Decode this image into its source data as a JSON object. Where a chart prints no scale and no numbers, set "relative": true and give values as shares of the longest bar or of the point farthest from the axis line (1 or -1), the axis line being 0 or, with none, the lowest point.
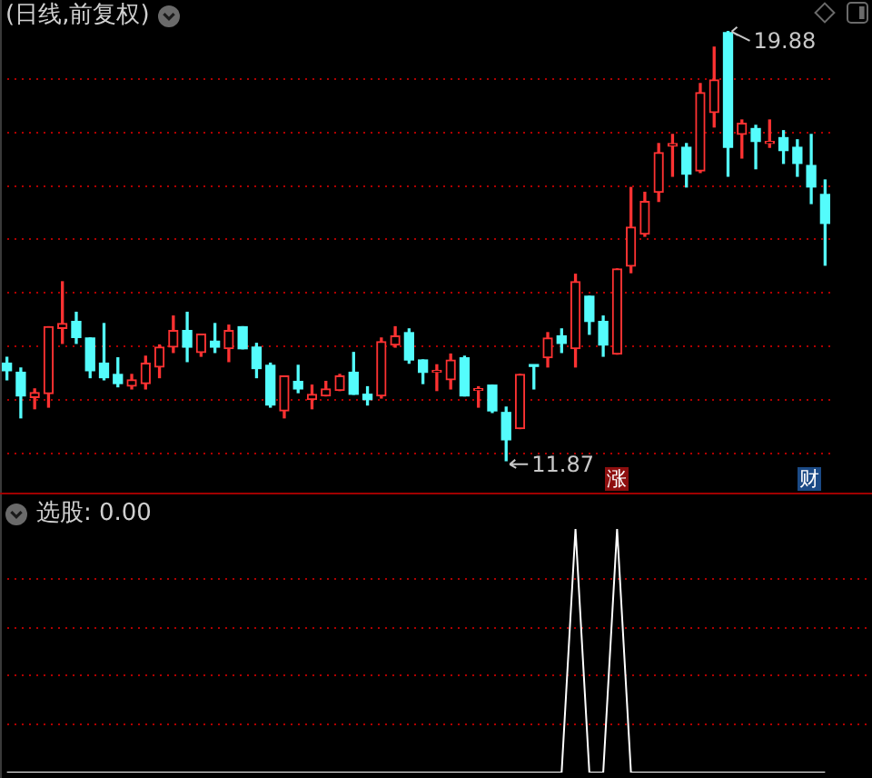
{
  "chart_data": [
    {
      "type": "candlestick",
      "title": "(日线,前复权)",
      "categories": [
        null,
        null,
        null,
        null,
        null,
        null,
        null,
        null,
        null,
        null,
        null,
        null,
        null,
        null,
        null,
        null,
        null,
        null,
        null,
        null,
        null,
        null,
        null,
        null,
        null,
        null,
        null,
        null,
        null,
        null,
        null,
        null,
        null,
        null,
        null,
        null,
        null,
        null,
        null,
        null,
        null,
        null,
        null,
        null,
        null,
        null,
        null,
        null,
        null,
        null,
        null,
        null,
        null,
        null,
        null,
        null,
        null,
        null,
        null,
        null
      ],
      "ohlc": [
        [
          13.69,
          13.8,
          13.38,
          13.55
        ],
        [
          13.52,
          13.6,
          12.67,
          13.08
        ],
        [
          13.05,
          13.21,
          12.84,
          13.14
        ],
        [
          13.12,
          14.37,
          12.87,
          14.37
        ],
        [
          14.34,
          15.21,
          14.06,
          14.43
        ],
        [
          14.47,
          14.64,
          14.06,
          14.17
        ],
        [
          14.16,
          14.16,
          13.42,
          13.55
        ],
        [
          13.69,
          14.43,
          13.38,
          13.42
        ],
        [
          13.48,
          13.79,
          13.25,
          13.31
        ],
        [
          13.26,
          13.48,
          13.21,
          13.38
        ],
        [
          13.31,
          13.82,
          13.21,
          13.69
        ],
        [
          13.62,
          14.03,
          13.42,
          13.99
        ],
        [
          13.99,
          14.57,
          13.89,
          14.3
        ],
        [
          14.3,
          14.64,
          13.72,
          13.99
        ],
        [
          13.89,
          14.23,
          13.82,
          14.23
        ],
        [
          14.1,
          14.43,
          13.89,
          13.99
        ],
        [
          13.96,
          14.4,
          13.72,
          14.3
        ],
        [
          14.37,
          14.37,
          13.96,
          13.96
        ],
        [
          13.99,
          14.06,
          13.42,
          13.59
        ],
        [
          13.65,
          13.69,
          12.87,
          12.91
        ],
        [
          12.8,
          13.45,
          12.67,
          13.45
        ],
        [
          13.35,
          13.65,
          13.14,
          13.21
        ],
        [
          13.01,
          13.28,
          12.84,
          13.11
        ],
        [
          13.08,
          13.35,
          13.08,
          13.21
        ],
        [
          13.18,
          13.48,
          13.18,
          13.45
        ],
        [
          13.52,
          13.89,
          13.11,
          13.11
        ],
        [
          13.11,
          13.25,
          12.91,
          13.01
        ],
        [
          13.08,
          14.16,
          13.04,
          14.09
        ],
        [
          14.03,
          14.37,
          13.99,
          14.2
        ],
        [
          14.26,
          14.33,
          13.69,
          13.75
        ],
        [
          13.75,
          13.75,
          13.31,
          13.52
        ],
        [
          13.52,
          13.66,
          13.18,
          13.53
        ],
        [
          13.38,
          13.86,
          13.21,
          13.75
        ],
        [
          13.79,
          13.82,
          13.08,
          13.08
        ],
        [
          13.18,
          13.25,
          12.87,
          13.21
        ],
        [
          13.28,
          13.28,
          12.77,
          12.8
        ],
        [
          12.77,
          12.87,
          11.87,
          12.26
        ],
        [
          12.47,
          13.48,
          12.47,
          13.48
        ],
        [
          13.65,
          13.65,
          13.21,
          13.63
        ],
        [
          13.79,
          14.26,
          13.62,
          14.16
        ],
        [
          14.2,
          14.33,
          13.89,
          14.06
        ],
        [
          13.96,
          15.35,
          13.62,
          15.21
        ],
        [
          14.94,
          14.94,
          14.23,
          14.47
        ],
        [
          14.47,
          14.57,
          13.82,
          14.03
        ],
        [
          13.86,
          15.45,
          13.86,
          15.45
        ],
        [
          15.5,
          16.97,
          15.38,
          16.23
        ],
        [
          16.1,
          16.88,
          16.06,
          16.71
        ],
        [
          16.88,
          17.79,
          16.71,
          17.62
        ],
        [
          17.74,
          17.96,
          17.18,
          17.79
        ],
        [
          17.72,
          17.79,
          16.98,
          17.22
        ],
        [
          17.28,
          18.91,
          17.25,
          18.74
        ],
        [
          18.37,
          19.59,
          18.1,
          18.98
        ],
        [
          19.86,
          19.88,
          17.18,
          17.72
        ],
        [
          17.96,
          18.23,
          17.52,
          18.17
        ],
        [
          18.07,
          18.13,
          17.32,
          17.83
        ],
        [
          17.79,
          18.23,
          17.72,
          17.83
        ],
        [
          17.9,
          18.03,
          17.42,
          17.66
        ],
        [
          17.72,
          17.86,
          17.18,
          17.42
        ],
        [
          17.38,
          17.96,
          16.67,
          16.98
        ],
        [
          16.84,
          17.11,
          15.52,
          16.3
        ]
      ],
      "colors": [
        "#54fcfc",
        "#54fcfc",
        "#ff3232",
        "#ff3232",
        "#ff3232",
        "#54fcfc",
        "#54fcfc",
        "#54fcfc",
        "#54fcfc",
        "#ff3232",
        "#ff3232",
        "#ff3232",
        "#ff3232",
        "#54fcfc",
        "#ff3232",
        "#54fcfc",
        "#ff3232",
        "#54fcfc",
        "#54fcfc",
        "#54fcfc",
        "#ff3232",
        "#54fcfc",
        "#ff3232",
        "#ff3232",
        "#ff3232",
        "#54fcfc",
        "#54fcfc",
        "#ff3232",
        "#ff3232",
        "#54fcfc",
        "#54fcfc",
        "#ff3232",
        "#ff3232",
        "#54fcfc",
        "#ff3232",
        "#54fcfc",
        "#54fcfc",
        "#ff3232",
        "#54fcfc",
        "#ff3232",
        "#54fcfc",
        "#ff3232",
        "#54fcfc",
        "#54fcfc",
        "#ff3232",
        "#ff3232",
        "#ff3232",
        "#ff3232",
        "#ff3232",
        "#54fcfc",
        "#ff3232",
        "#ff3232",
        "#54fcfc",
        "#ff3232",
        "#54fcfc",
        "#ff3232",
        "#54fcfc",
        "#54fcfc",
        "#54fcfc",
        "#54fcfc"
      ],
      "ylim": [
        11.24,
        20.47
      ],
      "yticks": [
        {
          "value": 12,
          "label": null
        },
        {
          "value": 13,
          "label": null
        },
        {
          "value": 14,
          "label": null
        },
        {
          "value": 15,
          "label": null
        },
        {
          "value": 16,
          "label": null
        },
        {
          "value": 17,
          "label": null
        },
        {
          "value": 18,
          "label": null
        },
        {
          "value": 19,
          "label": null
        }
      ],
      "grid": "y",
      "tick_labels": false,
      "annotations": [
        "19.88",
        "11.87",
        "涨",
        "财"
      ]
    },
    {
      "type": "line",
      "title": "选股: 0.00",
      "categories": [
        null,
        null,
        null,
        null,
        null,
        null,
        null,
        null,
        null,
        null,
        null,
        null,
        null,
        null,
        null,
        null,
        null,
        null,
        null,
        null,
        null,
        null,
        null,
        null,
        null,
        null,
        null,
        null,
        null,
        null,
        null,
        null,
        null,
        null,
        null,
        null,
        null,
        null,
        null,
        null,
        null,
        null,
        null,
        null,
        null,
        null,
        null,
        null,
        null,
        null,
        null,
        null,
        null,
        null,
        null,
        null,
        null,
        null,
        null,
        null
      ],
      "series": [
        {
          "color": "#ffffff",
          "values": [
            0,
            0,
            0,
            0,
            0,
            0,
            0,
            0,
            0,
            0,
            0,
            0,
            0,
            0,
            0,
            0,
            0,
            0,
            0,
            0,
            0,
            0,
            0,
            0,
            0,
            0,
            0,
            0,
            0,
            0,
            0,
            0,
            0,
            0,
            0,
            0,
            0,
            0,
            0,
            0,
            0,
            1,
            0,
            0,
            1,
            0,
            0,
            0,
            0,
            0,
            0,
            0,
            0,
            0,
            0,
            0,
            0,
            0,
            0,
            0
          ]
        }
      ],
      "relative": true,
      "ref_lines": [
        {
          "axis": "y",
          "value": 0.2,
          "color": "#b00000",
          "line_style": "dotted"
        },
        {
          "axis": "y",
          "value": 0.4,
          "color": "#b00000",
          "line_style": "dotted"
        },
        {
          "axis": "y",
          "value": 0.6,
          "color": "#b00000",
          "line_style": "dotted"
        },
        {
          "axis": "y",
          "value": 0.8,
          "color": "#b00000",
          "line_style": "dotted"
        }
      ],
      "tick_labels": false,
      "marker": "none"
    }
  ]
}
